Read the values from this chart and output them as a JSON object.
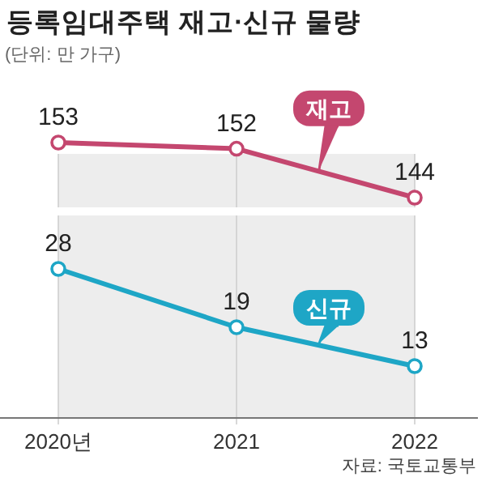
{
  "chart_data": [
    {
      "type": "line",
      "title": "등록임대주택 재고·신규 물량",
      "subtitle": "(단위: 만 가구)",
      "categories": [
        "2020년",
        "2021",
        "2022"
      ],
      "series": [
        {
          "name": "재고",
          "color": "#c4476f",
          "values": [
            153,
            152,
            144
          ]
        }
      ],
      "bands": [
        {
          "axis": "x",
          "from": "2020년",
          "to": "2022",
          "color": "#ededed"
        }
      ],
      "data_labels": true,
      "marker": "circle",
      "grid": "x",
      "tick_labels": false
    },
    {
      "type": "line",
      "categories": [
        "2020년",
        "2021",
        "2022"
      ],
      "series": [
        {
          "name": "신규",
          "color": "#1ea6c6",
          "values": [
            28,
            19,
            13
          ]
        }
      ],
      "bands": [
        {
          "axis": "x",
          "from": "2020년",
          "to": "2022",
          "color": "#ededed"
        }
      ],
      "data_labels": true,
      "marker": "circle",
      "grid": "x",
      "tick_labels": "x",
      "annotations": [
        "자료: 국토교통부"
      ]
    }
  ]
}
